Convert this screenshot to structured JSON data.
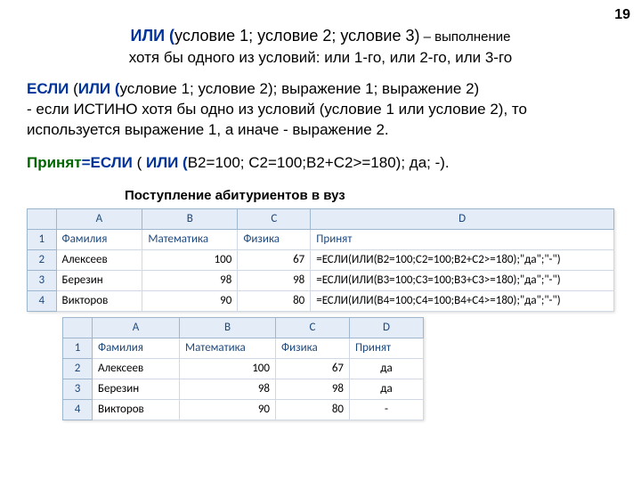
{
  "slide_number": "19",
  "line1": {
    "p1": "ИЛИ (",
    "p2": "условие 1; условие 2; условие 3)",
    "p3": " – выполнение"
  },
  "line2": "хотя бы одного из условий: или 1-го, или 2-го, или 3-го",
  "para1": {
    "p1": "ЕСЛИ",
    "p2": " (",
    "p3": "ИЛИ (",
    "p4": "условие 1; условие 2); выражение 1; выражение 2)",
    "p5": "- если ИСТИНО хотя бы одно из условий (условие 1 или условие 2), то используется выражение 1, а иначе - выражение 2."
  },
  "para2": {
    "p1": "Принят",
    "p2": "=ЕСЛИ",
    "p3": " ( ",
    "p4": "ИЛИ (",
    "p5": "B2=100; C2=100;B2+C2>=180); да; -).",
    "p5a": "."
  },
  "subheading": "Поступление абитуриентов в вуз",
  "table1": {
    "cols": [
      "A",
      "B",
      "C",
      "D"
    ],
    "col_widths": [
      "85px",
      "95px",
      "70px",
      "330px"
    ],
    "header_row": [
      "Фамилия",
      "Математика",
      "Физика",
      "Принят"
    ],
    "rows": [
      [
        "Алексеев",
        "100",
        "67",
        "=ЕСЛИ(ИЛИ(B2=100;C2=100;B2+C2>=180);\"да\";\"-\")"
      ],
      [
        "Березин",
        "98",
        "98",
        "=ЕСЛИ(ИЛИ(B3=100;C3=100;B3+C3>=180);\"да\";\"-\")"
      ],
      [
        "Викторов",
        "90",
        "80",
        "=ЕСЛИ(ИЛИ(B4=100;C4=100;B4+C4>=180);\"да\";\"-\")"
      ]
    ]
  },
  "table2": {
    "cols": [
      "A",
      "B",
      "C",
      "D"
    ],
    "col_widths": [
      "85px",
      "95px",
      "70px",
      "70px"
    ],
    "header_row": [
      "Фамилия",
      "Математика",
      "Физика",
      "Принят"
    ],
    "rows": [
      [
        "Алексеев",
        "100",
        "67",
        "да"
      ],
      [
        "Березин",
        "98",
        "98",
        "да"
      ],
      [
        "Викторов",
        "90",
        "80",
        "-"
      ]
    ]
  }
}
